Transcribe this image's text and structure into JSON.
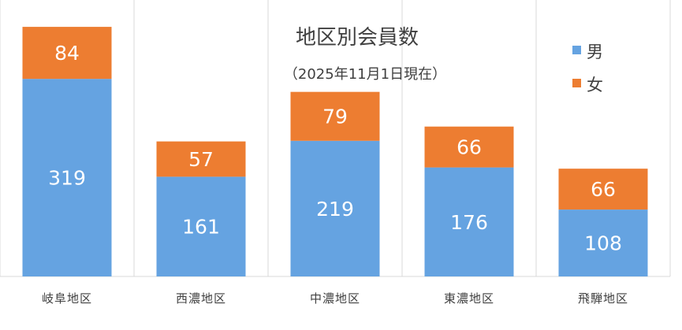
{
  "chart_data": {
    "type": "bar",
    "stacked": true,
    "title": "地区別会員数",
    "subtitle": "（2025年11月1日現在）",
    "categories": [
      "岐阜地区",
      "西濃地区",
      "中濃地区",
      "東濃地区",
      "飛騨地区"
    ],
    "series": [
      {
        "name": "男",
        "values": [
          319,
          161,
          219,
          176,
          108
        ],
        "color": "#65A3E1"
      },
      {
        "name": "女",
        "values": [
          84,
          57,
          79,
          66,
          66
        ],
        "color": "#ED7D31"
      }
    ],
    "ylim": [
      0,
      440
    ],
    "grid": "vertical separators",
    "legend": "top-right"
  }
}
